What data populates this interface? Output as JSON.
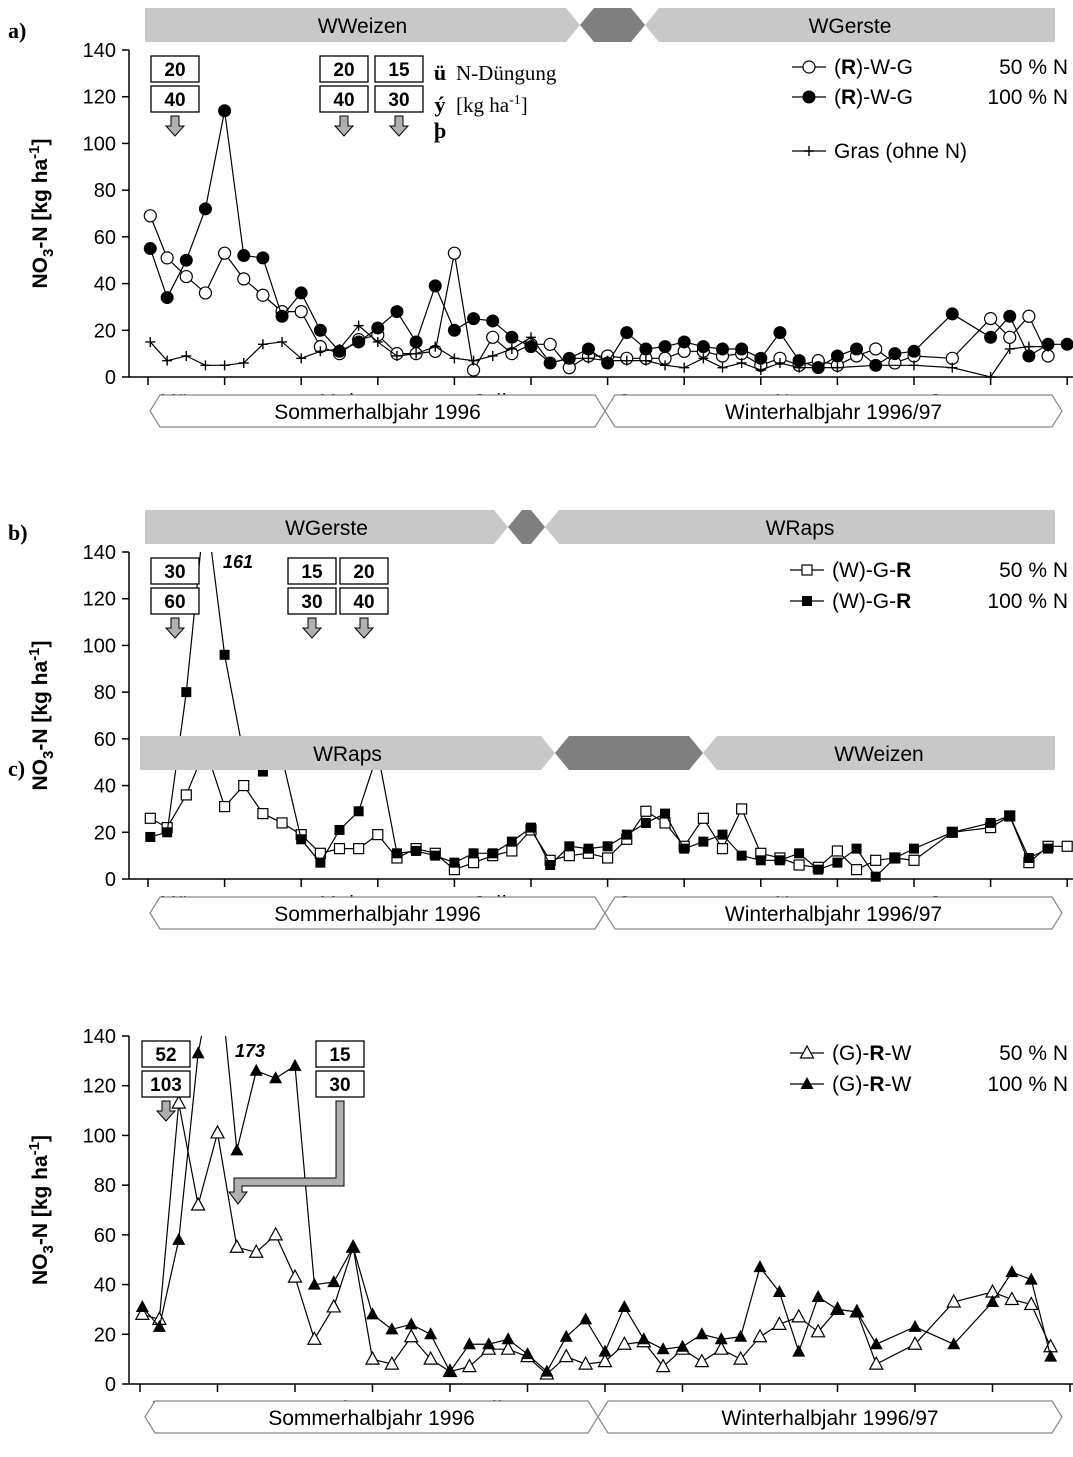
{
  "common": {
    "ylabel_main": "NO",
    "ylabel_sub": "3",
    "ylabel_rest": "-N [kg ha",
    "ylabel_sup": "-1",
    "ylabel_end": "]",
    "months": [
      "März",
      "Mai",
      "Juli",
      "Sept.",
      "Nov.",
      "Jan."
    ],
    "season_summer": "Sommerhalbjahr 1996",
    "season_winter": "Winterhalbjahr 1996/97",
    "yticks": [
      "0",
      "20",
      "40",
      "60",
      "80",
      "100",
      "120",
      "140"
    ]
  },
  "panels": [
    {
      "label": "a)",
      "crop_left": "WWeizen",
      "crop_right": "WGerste",
      "fert_groups": [
        {
          "top": "20",
          "bottom": "40"
        },
        {
          "top": "20",
          "bottom": "40"
        },
        {
          "top": "15",
          "bottom": "30"
        }
      ],
      "note": {
        "sym1": "ü",
        "sym2": "ý",
        "sym3": "þ",
        "line1": "N-Düngung",
        "line2_pre": "[kg ha",
        "line2_sup": "-1",
        "line2_post": "]"
      },
      "peak": "",
      "legend": [
        {
          "pre": "(",
          "bold": "R",
          "post": ")-W-G",
          "pct": "50 % N"
        },
        {
          "pre": "(",
          "bold": "R",
          "post": ")-W-G",
          "pct": "100 % N"
        },
        {
          "pre": "Gras (ohne N)",
          "bold": "",
          "post": "",
          "pct": ""
        }
      ]
    },
    {
      "label": "b)",
      "crop_left": "WGerste",
      "crop_right": "WRaps",
      "fert_groups": [
        {
          "top": "30",
          "bottom": "60"
        },
        {
          "top": "15",
          "bottom": "30"
        },
        {
          "top": "20",
          "bottom": "40"
        }
      ],
      "peak": "161",
      "legend": [
        {
          "pre": "(W)-G-",
          "bold": "R",
          "post": "",
          "pct": "50 % N"
        },
        {
          "pre": "(W)-G-",
          "bold": "R",
          "post": "",
          "pct": "100 % N"
        }
      ]
    },
    {
      "label": "c)",
      "crop_left": "WRaps",
      "crop_right": "WWeizen",
      "fert_groups": [
        {
          "top": "52",
          "bottom": "103"
        },
        {
          "top": "15",
          "bottom": "30"
        }
      ],
      "peak": "173",
      "legend": [
        {
          "pre": "(G)-",
          "bold": "R",
          "post": "-W",
          "pct": "50 % N"
        },
        {
          "pre": "(G)-",
          "bold": "R",
          "post": "-W",
          "pct": "100 % N"
        }
      ]
    }
  ],
  "chart_data": [
    {
      "type": "line",
      "title": "a)",
      "ylabel": "NO3-N [kg ha-1]",
      "ylim": [
        0,
        140
      ],
      "x_unit": "months since 1 Mar 1996",
      "series": [
        {
          "name": "(R)-W-G 50 % N",
          "marker": "open-circle",
          "x": [
            0.03,
            0.25,
            0.5,
            0.75,
            1.0,
            1.25,
            1.5,
            1.75,
            2.0,
            2.25,
            2.5,
            2.75,
            3.0,
            3.25,
            3.5,
            3.75,
            4.0,
            4.25,
            4.5,
            4.75,
            5.0,
            5.25,
            5.5,
            5.75,
            6.0,
            6.25,
            6.5,
            6.75,
            7.0,
            7.25,
            7.5,
            7.75,
            8.0,
            8.25,
            8.5,
            8.75,
            9.0,
            9.25,
            9.5,
            9.75,
            10.0,
            10.5,
            11.0,
            11.25,
            11.5,
            11.75
          ],
          "y": [
            69,
            51,
            43,
            36,
            53,
            42,
            35,
            28,
            28,
            13,
            10,
            16,
            18,
            10,
            10,
            11,
            53,
            3,
            17,
            10,
            14,
            14,
            4,
            9,
            9,
            8,
            8,
            8,
            11,
            11,
            9,
            10,
            5,
            8,
            5,
            7,
            5,
            9,
            12,
            6,
            9,
            8,
            25,
            17,
            26,
            9
          ]
        },
        {
          "name": "(R)-W-G 100 % N",
          "marker": "filled-circle",
          "x": [
            0.03,
            0.25,
            0.5,
            0.75,
            1.0,
            1.25,
            1.5,
            1.75,
            2.0,
            2.25,
            2.5,
            2.75,
            3.0,
            3.25,
            3.5,
            3.75,
            4.0,
            4.25,
            4.5,
            4.75,
            5.0,
            5.25,
            5.5,
            5.75,
            6.0,
            6.25,
            6.5,
            6.75,
            7.0,
            7.25,
            7.5,
            7.75,
            8.0,
            8.25,
            8.5,
            8.75,
            9.0,
            9.25,
            9.5,
            9.75,
            10.0,
            10.5,
            11.0,
            11.25,
            11.5,
            11.75,
            12.0
          ],
          "y": [
            55,
            34,
            50,
            72,
            114,
            52,
            51,
            26,
            36,
            20,
            11,
            15,
            21,
            28,
            15,
            39,
            20,
            25,
            24,
            17,
            13,
            6,
            8,
            12,
            6,
            19,
            12,
            13,
            15,
            13,
            12,
            12,
            8,
            19,
            7,
            4,
            9,
            12,
            5,
            10,
            11,
            27,
            17,
            26,
            9,
            14,
            14
          ]
        },
        {
          "name": "Gras (ohne N)",
          "marker": "plus",
          "x": [
            0.03,
            0.25,
            0.5,
            0.75,
            1.0,
            1.25,
            1.5,
            1.75,
            2.0,
            2.25,
            2.5,
            2.75,
            3.0,
            3.25,
            3.5,
            3.75,
            4.0,
            4.25,
            4.5,
            4.75,
            5.0,
            5.25,
            5.5,
            5.75,
            6.0,
            6.25,
            6.5,
            6.75,
            7.0,
            7.25,
            7.5,
            7.75,
            8.0,
            8.25,
            8.5,
            8.75,
            9.0,
            9.5,
            10.0,
            10.5,
            11.0,
            11.25,
            11.5,
            11.75
          ],
          "y": [
            15,
            7,
            9,
            5,
            5,
            6,
            14,
            15,
            8,
            11,
            12,
            22,
            15,
            9,
            10,
            13,
            8,
            7,
            9,
            12,
            17,
            6,
            8,
            8,
            7,
            7,
            7,
            5,
            4,
            8,
            4,
            6,
            3,
            6,
            4,
            4,
            4,
            5,
            5,
            4,
            0,
            12,
            13,
            13
          ]
        }
      ]
    },
    {
      "type": "line",
      "title": "b)",
      "ylabel": "NO3-N [kg ha-1]",
      "ylim": [
        0,
        140
      ],
      "x_unit": "months since 1 Mar 1996",
      "series": [
        {
          "name": "(W)-G-R 50 % N",
          "marker": "open-square",
          "x": [
            0.03,
            0.25,
            0.5,
            0.75,
            1.0,
            1.25,
            1.5,
            1.75,
            2.0,
            2.25,
            2.5,
            2.75,
            3.0,
            3.25,
            3.5,
            3.75,
            4.0,
            4.25,
            4.5,
            4.75,
            5.0,
            5.25,
            5.5,
            5.75,
            6.0,
            6.25,
            6.5,
            6.75,
            7.0,
            7.25,
            7.5,
            7.75,
            8.0,
            8.25,
            8.5,
            8.75,
            9.0,
            9.25,
            9.5,
            9.75,
            10.0,
            10.5,
            11.0,
            11.25,
            11.5,
            11.75,
            12.0
          ],
          "y": [
            26,
            22,
            36,
            56,
            31,
            40,
            28,
            24,
            19,
            11,
            13,
            13,
            19,
            9,
            13,
            11,
            4,
            7,
            10,
            12,
            21,
            8,
            10,
            11,
            9,
            17,
            29,
            24,
            14,
            26,
            13,
            30,
            11,
            9,
            6,
            5,
            12,
            4,
            8,
            9,
            8,
            20,
            22,
            27,
            7,
            14,
            14
          ]
        },
        {
          "name": "(W)-G-R 100 % N",
          "marker": "filled-square",
          "x": [
            0.03,
            0.25,
            0.5,
            0.75,
            1.0,
            1.25,
            1.5,
            1.75,
            2.0,
            2.25,
            2.5,
            2.75,
            3.0,
            3.25,
            3.5,
            3.75,
            4.0,
            4.25,
            4.5,
            4.75,
            5.0,
            5.25,
            5.5,
            5.75,
            6.0,
            6.25,
            6.5,
            6.75,
            7.0,
            7.25,
            7.5,
            7.75,
            8.0,
            8.25,
            8.5,
            8.75,
            9.0,
            9.25,
            9.5,
            9.75,
            10.0,
            10.5,
            11.0,
            11.25,
            11.5,
            11.75
          ],
          "y": [
            18,
            20,
            80,
            161,
            96,
            53,
            46,
            52,
            17,
            7,
            21,
            29,
            54,
            11,
            12,
            10,
            7,
            11,
            11,
            16,
            22,
            6,
            14,
            13,
            14,
            19,
            24,
            28,
            13,
            16,
            19,
            10,
            8,
            8,
            11,
            4,
            7,
            13,
            1,
            9,
            13,
            20,
            24,
            27,
            9,
            13
          ]
        }
      ]
    },
    {
      "type": "line",
      "title": "c)",
      "ylabel": "NO3-N [kg ha-1]",
      "ylim": [
        0,
        140
      ],
      "x_unit": "months since 1 Mar 1996",
      "series": [
        {
          "name": "(G)-R-W 50 % N",
          "marker": "open-triangle",
          "x": [
            0.03,
            0.25,
            0.5,
            0.75,
            1.0,
            1.25,
            1.5,
            1.75,
            2.0,
            2.25,
            2.5,
            2.75,
            3.0,
            3.25,
            3.5,
            3.75,
            4.0,
            4.25,
            4.5,
            4.75,
            5.0,
            5.25,
            5.5,
            5.75,
            6.0,
            6.25,
            6.5,
            6.75,
            7.0,
            7.25,
            7.5,
            7.75,
            8.0,
            8.25,
            8.5,
            8.75,
            9.0,
            9.25,
            9.5,
            10.0,
            10.5,
            11.0,
            11.25,
            11.5,
            11.75
          ],
          "y": [
            28,
            26,
            113,
            72,
            101,
            55,
            53,
            60,
            43,
            18,
            31,
            55,
            10,
            8,
            19,
            10,
            5,
            7,
            14,
            14,
            11,
            4,
            11,
            8,
            9,
            16,
            17,
            7,
            14,
            9,
            14,
            10,
            19,
            24,
            27,
            21,
            30,
            29,
            8,
            16,
            33,
            37,
            34,
            32,
            15
          ]
        },
        {
          "name": "(G)-R-W 100 % N",
          "marker": "filled-triangle",
          "x": [
            0.03,
            0.25,
            0.5,
            0.75,
            1.0,
            1.25,
            1.5,
            1.75,
            2.0,
            2.25,
            2.5,
            2.75,
            3.0,
            3.25,
            3.5,
            3.75,
            4.0,
            4.25,
            4.5,
            4.75,
            5.0,
            5.25,
            5.5,
            5.75,
            6.0,
            6.25,
            6.5,
            6.75,
            7.0,
            7.25,
            7.5,
            7.75,
            8.0,
            8.25,
            8.5,
            8.75,
            9.0,
            9.25,
            9.5,
            10.0,
            10.5,
            11.0,
            11.25,
            11.5,
            11.75
          ],
          "y": [
            31,
            23,
            58,
            133,
            173,
            94,
            126,
            123,
            128,
            40,
            41,
            55,
            28,
            22,
            24,
            20,
            5,
            16,
            16,
            18,
            12,
            5,
            19,
            26,
            13,
            31,
            18,
            14,
            15,
            20,
            18,
            19,
            47,
            37,
            13,
            35,
            30,
            29,
            16,
            23,
            16,
            33,
            45,
            42,
            11
          ]
        }
      ]
    }
  ]
}
